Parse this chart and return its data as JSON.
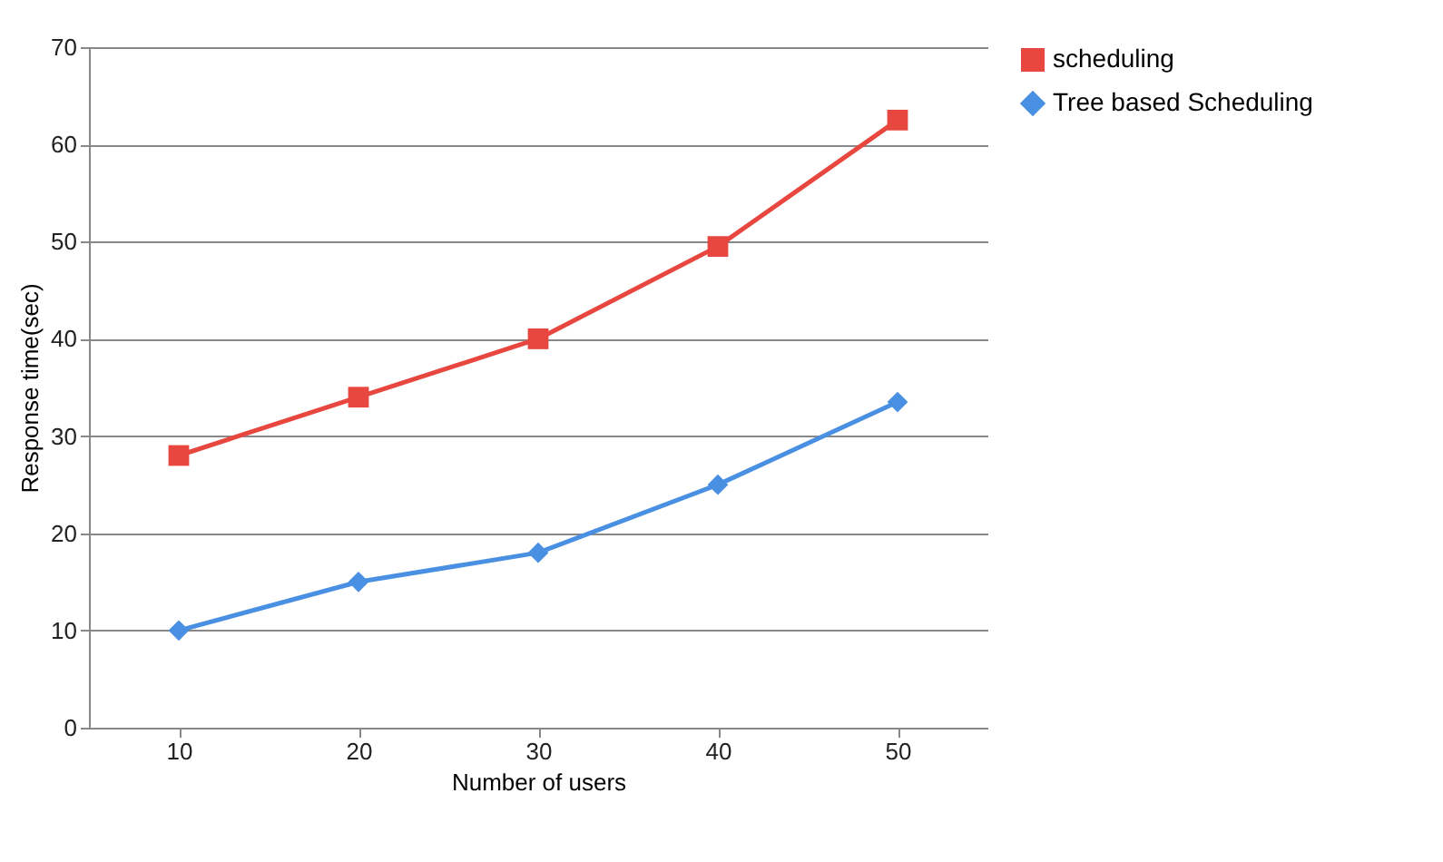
{
  "chart_data": {
    "type": "line",
    "xlabel": "Number of users",
    "ylabel": "Response time(sec)",
    "categories": [
      "10",
      "20",
      "30",
      "40",
      "50"
    ],
    "series": [
      {
        "name": "scheduling",
        "color": "#e8473f",
        "marker": "square",
        "values": [
          28,
          34,
          40,
          49.5,
          62.5
        ]
      },
      {
        "name": "Tree based Scheduling",
        "color": "#4a90e2",
        "marker": "diamond",
        "values": [
          10,
          15,
          18,
          25,
          33.5
        ]
      }
    ],
    "ylim": [
      0,
      70
    ],
    "yticks": [
      0,
      10,
      20,
      30,
      40,
      50,
      60,
      70
    ],
    "grid": "y",
    "legend": "right"
  }
}
